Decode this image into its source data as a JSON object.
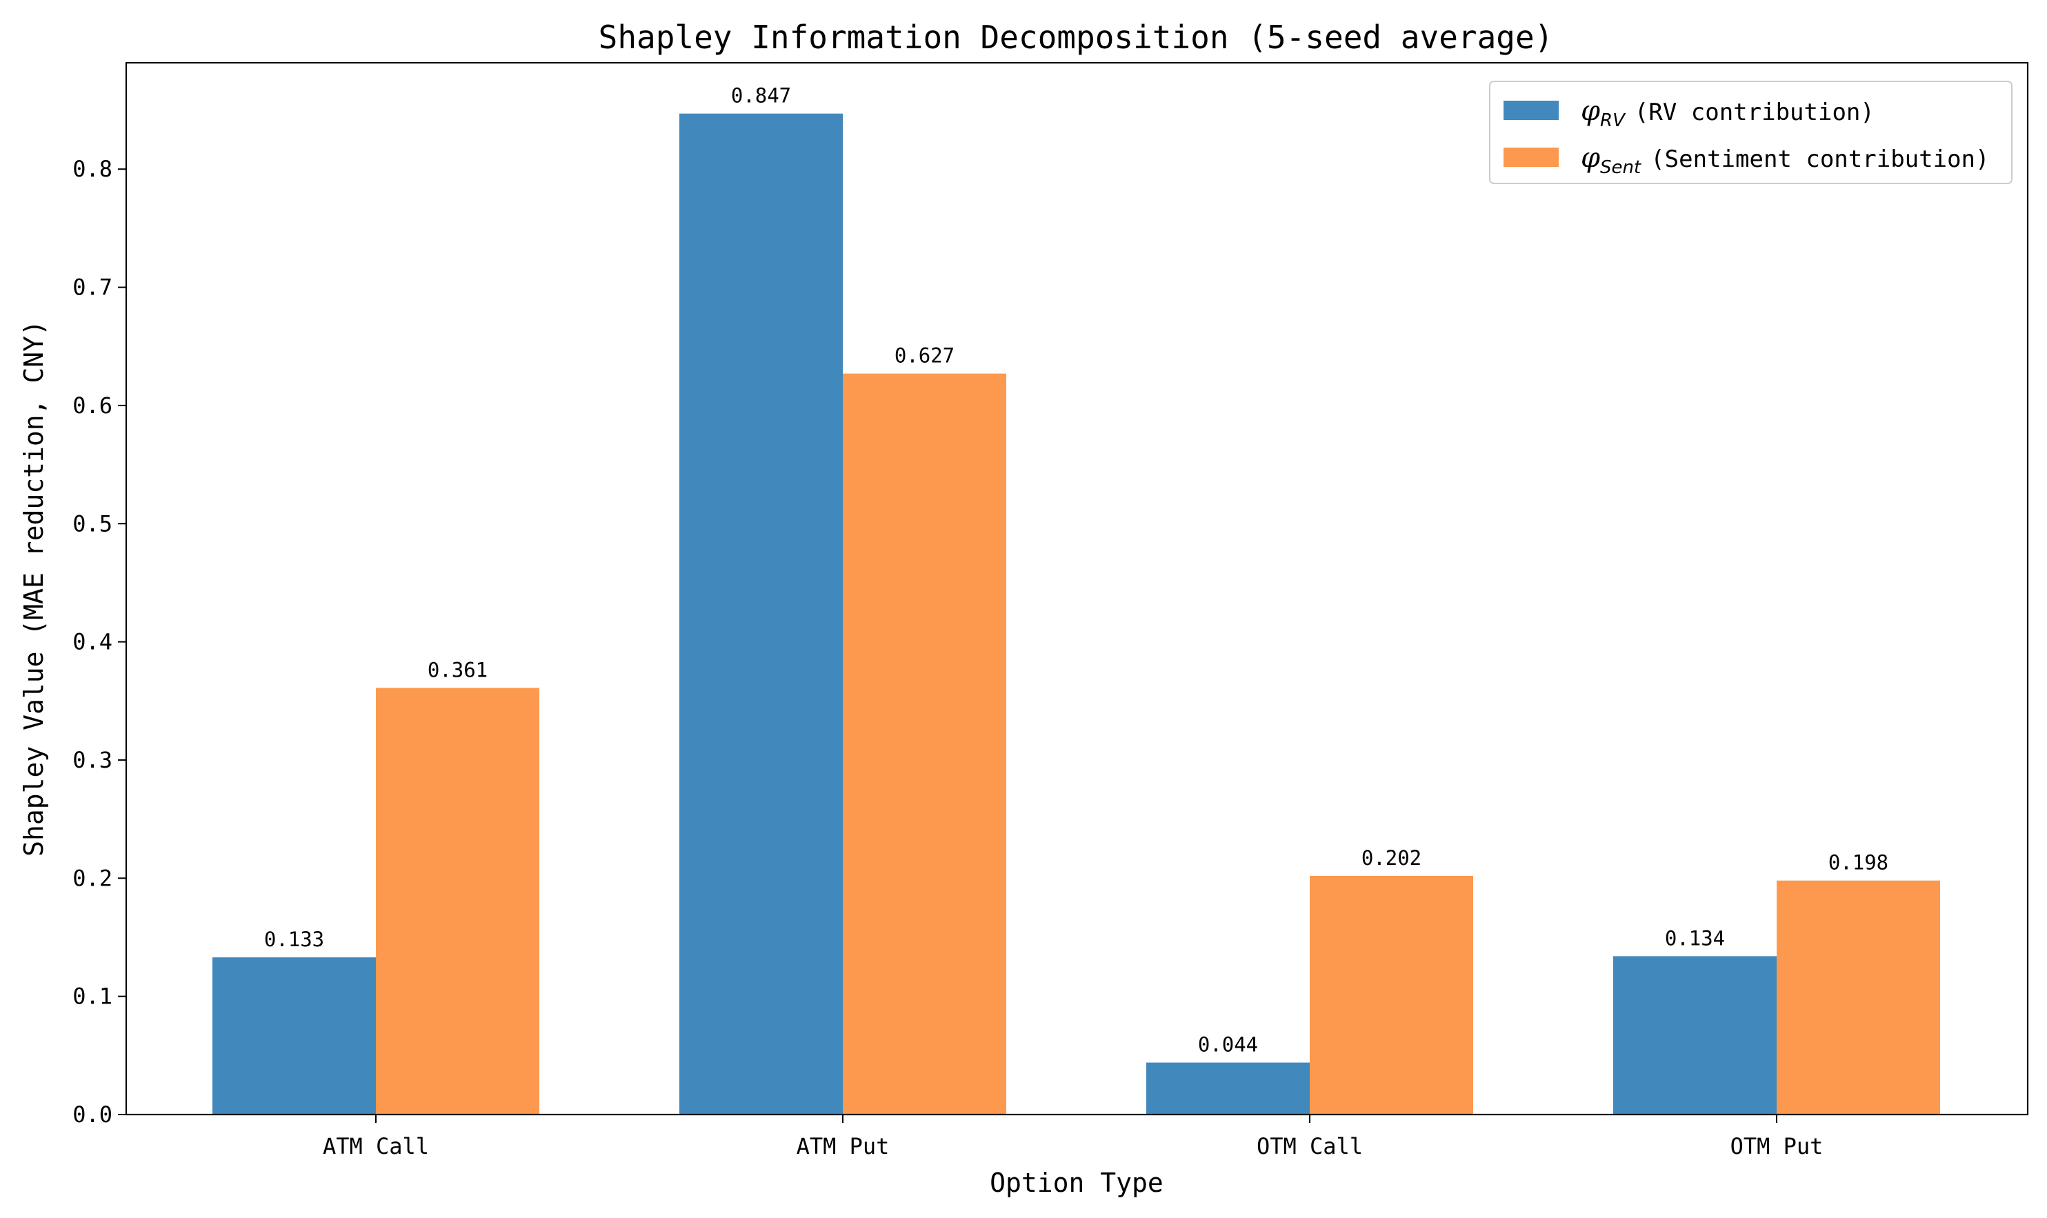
{
  "chart_data": {
    "type": "bar",
    "title": "Shapley Information Decomposition (5-seed average)",
    "xlabel": "Option Type",
    "ylabel": "Shapley Value (MAE reduction, CNY)",
    "categories": [
      "ATM Call",
      "ATM Put",
      "OTM Call",
      "OTM Put"
    ],
    "ylim": [
      0,
      0.89
    ],
    "yticks": [
      0.0,
      0.1,
      0.2,
      0.3,
      0.4,
      0.5,
      0.6,
      0.7,
      0.8
    ],
    "ytick_labels": [
      "0.0",
      "0.1",
      "0.2",
      "0.3",
      "0.4",
      "0.5",
      "0.6",
      "0.7",
      "0.8"
    ],
    "legend_position": "top-right",
    "grid": false,
    "series": [
      {
        "name": "φRV (RV contribution)",
        "symbol": "φ",
        "subscript": "RV",
        "legend_text": "(RV contribution)",
        "color": "#4189bc",
        "values": [
          0.133,
          0.847,
          0.044,
          0.134
        ],
        "labels": [
          "0.133",
          "0.847",
          "0.044",
          "0.134"
        ]
      },
      {
        "name": "φSent (Sentiment contribution)",
        "symbol": "φ",
        "subscript": "Sent",
        "legend_text": "(Sentiment contribution)",
        "color": "#fd994e",
        "values": [
          0.361,
          0.627,
          0.202,
          0.198
        ],
        "labels": [
          "0.361",
          "0.627",
          "0.202",
          "0.198"
        ]
      }
    ]
  }
}
